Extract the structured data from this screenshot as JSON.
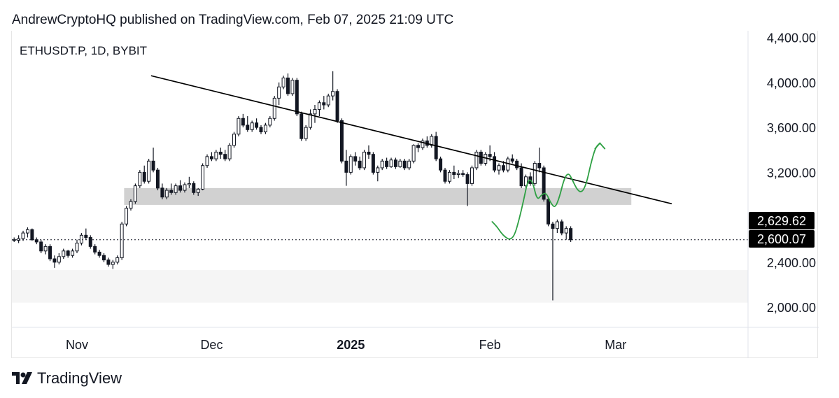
{
  "header": {
    "published_text": "AndrewCryptoHQ published on TradingView.com, Feb 07, 2025 21:09 UTC"
  },
  "footer": {
    "brand": "TradingView",
    "logo_icon": "tradingview-logo-icon"
  },
  "chart_data": {
    "type": "candlestick",
    "title": "ETHUSDT.P, 1D, BYBIT",
    "symbol": "ETHUSDT.P",
    "interval": "1D",
    "exchange": "BYBIT",
    "y_axis": {
      "position": "right",
      "ticks": [
        4400,
        4000,
        3600,
        3200,
        2400,
        2000
      ],
      "tick_labels": [
        "4,400.00",
        "4,000.00",
        "3,600.00",
        "3,200.00",
        "2,400.00",
        "2,000.00"
      ],
      "ylim": [
        1820,
        4460
      ]
    },
    "x_axis": {
      "ticks": [
        {
          "label": "Nov",
          "day": 0,
          "bold": false
        },
        {
          "label": "Dec",
          "day": 30,
          "bold": false
        },
        {
          "label": "2025",
          "day": 61,
          "bold": true
        },
        {
          "label": "Feb",
          "day": 92,
          "bold": false
        },
        {
          "label": "Mar",
          "day": 120,
          "bold": false
        }
      ],
      "xlim_days": [
        -14,
        150
      ]
    },
    "price_labels": [
      {
        "text": "2,629.62",
        "value": 2629.62
      },
      {
        "text": "2,600.07",
        "value": 2600.07
      }
    ],
    "current_price": 2600.07,
    "candles_start_day": -14,
    "candles": [
      [
        2600,
        2620,
        2580,
        2595
      ],
      [
        2595,
        2640,
        2570,
        2610
      ],
      [
        2610,
        2680,
        2590,
        2660
      ],
      [
        2660,
        2710,
        2620,
        2690
      ],
      [
        2690,
        2700,
        2590,
        2600
      ],
      [
        2600,
        2620,
        2560,
        2580
      ],
      [
        2580,
        2600,
        2480,
        2500
      ],
      [
        2500,
        2560,
        2470,
        2540
      ],
      [
        2540,
        2560,
        2410,
        2430
      ],
      [
        2430,
        2460,
        2350,
        2400
      ],
      [
        2400,
        2480,
        2380,
        2450
      ],
      [
        2450,
        2520,
        2430,
        2500
      ],
      [
        2500,
        2510,
        2440,
        2460
      ],
      [
        2460,
        2520,
        2440,
        2500
      ],
      [
        2500,
        2600,
        2480,
        2570
      ],
      [
        2570,
        2660,
        2550,
        2640
      ],
      [
        2640,
        2700,
        2600,
        2620
      ],
      [
        2620,
        2640,
        2520,
        2540
      ],
      [
        2540,
        2560,
        2470,
        2490
      ],
      [
        2490,
        2510,
        2440,
        2460
      ],
      [
        2460,
        2480,
        2400,
        2420
      ],
      [
        2420,
        2440,
        2360,
        2380
      ],
      [
        2380,
        2420,
        2340,
        2400
      ],
      [
        2400,
        2460,
        2380,
        2440
      ],
      [
        2440,
        2760,
        2420,
        2740
      ],
      [
        2740,
        2900,
        2720,
        2880
      ],
      [
        2880,
        2960,
        2860,
        2940
      ],
      [
        2940,
        3100,
        2920,
        3080
      ],
      [
        3080,
        3220,
        3060,
        3200
      ],
      [
        3200,
        3260,
        3100,
        3120
      ],
      [
        3120,
        3320,
        3100,
        3300
      ],
      [
        3300,
        3420,
        3200,
        3220
      ],
      [
        3220,
        3240,
        3040,
        3060
      ],
      [
        3060,
        3100,
        2960,
        2980
      ],
      [
        2980,
        3060,
        2960,
        3040
      ],
      [
        3040,
        3100,
        3000,
        3020
      ],
      [
        3020,
        3100,
        3000,
        3080
      ],
      [
        3080,
        3130,
        3020,
        3040
      ],
      [
        3040,
        3110,
        3020,
        3090
      ],
      [
        3090,
        3160,
        3060,
        3100
      ],
      [
        3100,
        3120,
        3000,
        3020
      ],
      [
        3020,
        3060,
        2990,
        3050
      ],
      [
        3050,
        3280,
        3040,
        3260
      ],
      [
        3260,
        3360,
        3240,
        3340
      ],
      [
        3340,
        3380,
        3300,
        3320
      ],
      [
        3320,
        3400,
        3300,
        3380
      ],
      [
        3380,
        3420,
        3320,
        3360
      ],
      [
        3360,
        3400,
        3300,
        3320
      ],
      [
        3320,
        3460,
        3300,
        3440
      ],
      [
        3440,
        3560,
        3420,
        3540
      ],
      [
        3540,
        3700,
        3520,
        3680
      ],
      [
        3680,
        3720,
        3600,
        3620
      ],
      [
        3620,
        3700,
        3560,
        3580
      ],
      [
        3580,
        3660,
        3560,
        3640
      ],
      [
        3640,
        3680,
        3580,
        3600
      ],
      [
        3600,
        3620,
        3540,
        3560
      ],
      [
        3560,
        3640,
        3540,
        3620
      ],
      [
        3620,
        3700,
        3600,
        3680
      ],
      [
        3680,
        3880,
        3660,
        3860
      ],
      [
        3860,
        4000,
        3800,
        3960
      ],
      [
        3960,
        4060,
        3940,
        4040
      ],
      [
        4040,
        4080,
        3880,
        3900
      ],
      [
        3900,
        4040,
        3880,
        4020
      ],
      [
        4020,
        4040,
        3700,
        3720
      ],
      [
        3720,
        3740,
        3480,
        3500
      ],
      [
        3500,
        3620,
        3480,
        3600
      ],
      [
        3600,
        3760,
        3580,
        3720
      ],
      [
        3720,
        3800,
        3640,
        3760
      ],
      [
        3760,
        3840,
        3700,
        3820
      ],
      [
        3820,
        3880,
        3760,
        3800
      ],
      [
        3800,
        3900,
        3780,
        3880
      ],
      [
        3880,
        4100,
        3840,
        3920
      ],
      [
        3920,
        3940,
        3640,
        3660
      ],
      [
        3660,
        3680,
        3280,
        3300
      ],
      [
        3300,
        3400,
        3080,
        3200
      ],
      [
        3200,
        3360,
        3180,
        3340
      ],
      [
        3340,
        3380,
        3260,
        3300
      ],
      [
        3300,
        3340,
        3220,
        3240
      ],
      [
        3240,
        3400,
        3220,
        3380
      ],
      [
        3380,
        3440,
        3320,
        3360
      ],
      [
        3360,
        3380,
        3180,
        3200
      ],
      [
        3200,
        3260,
        3120,
        3240
      ],
      [
        3240,
        3320,
        3220,
        3300
      ],
      [
        3300,
        3330,
        3230,
        3250
      ],
      [
        3250,
        3330,
        3240,
        3310
      ],
      [
        3310,
        3330,
        3230,
        3250
      ],
      [
        3250,
        3320,
        3240,
        3300
      ],
      [
        3300,
        3320,
        3220,
        3240
      ],
      [
        3240,
        3320,
        3220,
        3300
      ],
      [
        3300,
        3450,
        3280,
        3440
      ],
      [
        3440,
        3460,
        3380,
        3420
      ],
      [
        3420,
        3500,
        3400,
        3480
      ],
      [
        3480,
        3520,
        3420,
        3440
      ],
      [
        3440,
        3540,
        3420,
        3520
      ],
      [
        3520,
        3560,
        3300,
        3320
      ],
      [
        3320,
        3340,
        3200,
        3220
      ],
      [
        3220,
        3240,
        3100,
        3120
      ],
      [
        3120,
        3220,
        3100,
        3200
      ],
      [
        3200,
        3260,
        3140,
        3180
      ],
      [
        3180,
        3220,
        3150,
        3190
      ],
      [
        3190,
        3220,
        3160,
        3180
      ],
      [
        3180,
        3200,
        2900,
        3100
      ],
      [
        3100,
        3260,
        3080,
        3240
      ],
      [
        3240,
        3400,
        3220,
        3380
      ],
      [
        3380,
        3400,
        3260,
        3280
      ],
      [
        3280,
        3380,
        3260,
        3360
      ],
      [
        3360,
        3440,
        3300,
        3340
      ],
      [
        3340,
        3380,
        3200,
        3220
      ],
      [
        3220,
        3280,
        3180,
        3260
      ],
      [
        3260,
        3300,
        3200,
        3220
      ],
      [
        3220,
        3340,
        3200,
        3320
      ],
      [
        3320,
        3360,
        3280,
        3300
      ],
      [
        3300,
        3320,
        3220,
        3240
      ],
      [
        3240,
        3280,
        3060,
        3080
      ],
      [
        3080,
        3180,
        3060,
        3160
      ],
      [
        3160,
        3200,
        3080,
        3100
      ],
      [
        3100,
        3300,
        3080,
        3280
      ],
      [
        3280,
        3420,
        3200,
        3240
      ],
      [
        3240,
        3260,
        2940,
        2960
      ],
      [
        2960,
        2980,
        2720,
        2740
      ],
      [
        2740,
        2760,
        2060,
        2700
      ],
      [
        2700,
        2780,
        2660,
        2760
      ],
      [
        2760,
        2780,
        2640,
        2660
      ],
      [
        2660,
        2720,
        2600,
        2700
      ],
      [
        2700,
        2720,
        2580,
        2600
      ]
    ],
    "zones": [
      {
        "name": "resistance-zone",
        "y_low": 2910,
        "y_high": 3060,
        "day_start": 11,
        "day_end": 124,
        "color": "#d1d1d1"
      },
      {
        "name": "demand-zone",
        "y_low": 2040,
        "y_high": 2330,
        "day_start": -14,
        "day_end": 150,
        "color": "#f5f5f5"
      }
    ],
    "trendline": {
      "points": [
        [
          17,
          4060
        ],
        [
          133,
          2920
        ]
      ],
      "color": "#000000"
    },
    "projection": {
      "color": "#2ea043",
      "points": [
        [
          93,
          2760
        ],
        [
          94,
          2720
        ],
        [
          95,
          2660
        ],
        [
          96,
          2620
        ],
        [
          97,
          2600
        ],
        [
          98,
          2640
        ],
        [
          99,
          2780
        ],
        [
          100,
          2950
        ],
        [
          101,
          3140
        ],
        [
          102,
          3120
        ],
        [
          103,
          2950
        ],
        [
          104,
          3000
        ],
        [
          105,
          3020
        ],
        [
          106,
          2930
        ],
        [
          107,
          2880
        ],
        [
          108,
          2980
        ],
        [
          109,
          3140
        ],
        [
          110,
          3200
        ],
        [
          111,
          3120
        ],
        [
          112,
          3040
        ],
        [
          113,
          3020
        ],
        [
          114,
          3100
        ],
        [
          115,
          3280
        ],
        [
          116,
          3420
        ],
        [
          117,
          3460
        ]
      ],
      "arrow_tip": [
        117,
        3460
      ]
    },
    "colors": {
      "candle": "#131722",
      "dotted_price_line": "#131722",
      "price_label_bg": "#000000",
      "price_label_text": "#ffffff",
      "axis_text": "#131722"
    }
  }
}
